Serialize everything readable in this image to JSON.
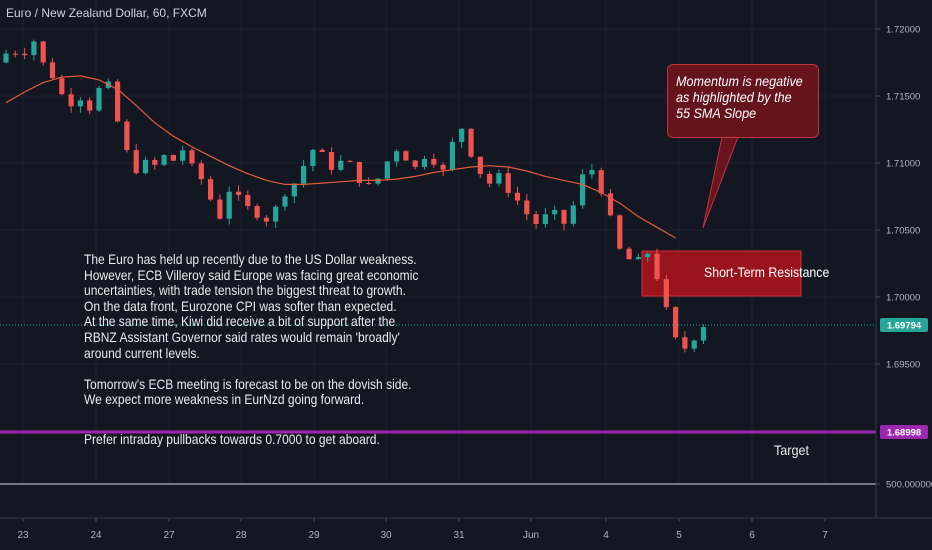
{
  "header": {
    "symbol_title": "Euro / New Zealand Dollar, 60, FXCM"
  },
  "colors": {
    "background": "#131722",
    "candle_up": "#26a69a",
    "candle_down": "#ef5350",
    "sma": "#e35b3a",
    "target_line": "#9c27b0",
    "current_price_line": "#26a69a",
    "resistance_box": "#b3141c",
    "axis_text": "#b2b5be"
  },
  "annotations": {
    "commentary": {
      "paragraph_1": [
        "The Euro has held up recently due to the US Dollar weakness.",
        "However, ECB Villeroy said Europe was facing great economic",
        "uncertainties, with trade tension the biggest threat to growth.",
        "On the data front, Eurozone CPI was softer than expected.",
        "At the same time, Kiwi did receive a bit of support after the",
        "RBNZ Assistant Governor said rates would remain 'broadly'",
        "around current levels."
      ],
      "paragraph_2": [
        "Tomorrow's ECB meeting is forecast to be on the dovish side.",
        "We expect more weakness in EurNzd going forward."
      ],
      "paragraph_3": "Prefer intraday pullbacks towards 0.7000 to get aboard."
    },
    "momentum_callout": [
      "Momentum is negative",
      "as highlighted by the",
      "55 SMA Slope"
    ],
    "resistance_label": "Short-Term Resistance",
    "target_label": "Target"
  },
  "chart_data": {
    "type": "candlestick",
    "instrument": "Euro / New Zealand Dollar",
    "timeframe": "60",
    "source": "FXCM",
    "x_ticks": [
      "23",
      "24",
      "27",
      "28",
      "29",
      "30",
      "31",
      "Jun",
      "4",
      "5",
      "6",
      "7"
    ],
    "y_ticks": [
      "1.72000",
      "1.71500",
      "1.71000",
      "1.70500",
      "1.70000",
      "1.69500",
      "500.000000"
    ],
    "ylim": [
      1.6895,
      1.721
    ],
    "current_price": 1.69794,
    "current_price_label": "1.69794",
    "target_price": 1.68998,
    "target_price_label": "1.68998",
    "resistance_zone": [
      1.7003,
      1.7051
    ],
    "sma_period": 55,
    "price_path": [
      [
        0,
        1.7175
      ],
      [
        1.5,
        1.7185
      ],
      [
        2.8,
        1.718
      ],
      [
        3.8,
        1.7195
      ],
      [
        4.8,
        1.7176
      ],
      [
        6.2,
        1.7163
      ],
      [
        7.2,
        1.7148
      ],
      [
        7.8,
        1.714
      ],
      [
        8.6,
        1.716
      ],
      [
        9.4,
        1.7138
      ],
      [
        10.2,
        1.7142
      ],
      [
        11,
        1.7155
      ],
      [
        11.8,
        1.7163
      ],
      [
        12.5,
        1.7145
      ],
      [
        13.2,
        1.7125
      ],
      [
        14,
        1.7108
      ],
      [
        15,
        1.7095
      ],
      [
        16,
        1.71
      ],
      [
        17,
        1.7098
      ],
      [
        18,
        1.7105
      ],
      [
        19,
        1.7102
      ],
      [
        20,
        1.711
      ],
      [
        21,
        1.7097
      ],
      [
        22,
        1.7088
      ],
      [
        23.2,
        1.707
      ],
      [
        24,
        1.706
      ],
      [
        25,
        1.708
      ],
      [
        26.2,
        1.7072
      ],
      [
        27.2,
        1.7065
      ],
      [
        28,
        1.7062
      ],
      [
        29,
        1.7058
      ],
      [
        30,
        1.7066
      ],
      [
        31,
        1.7078
      ],
      [
        32,
        1.7085
      ],
      [
        33,
        1.7098
      ],
      [
        34,
        1.711
      ],
      [
        35.2,
        1.7105
      ],
      [
        36.2,
        1.7095
      ],
      [
        37.2,
        1.7102
      ],
      [
        38.2,
        1.7098
      ],
      [
        39.2,
        1.7085
      ],
      [
        40.2,
        1.7082
      ],
      [
        41.2,
        1.709
      ],
      [
        42.2,
        1.7104
      ],
      [
        43.2,
        1.7112
      ],
      [
        44.2,
        1.7102
      ],
      [
        45.2,
        1.7095
      ],
      [
        46.2,
        1.7108
      ],
      [
        47.2,
        1.71
      ],
      [
        48.2,
        1.7092
      ],
      [
        49.2,
        1.712
      ],
      [
        50.2,
        1.7128
      ],
      [
        51.2,
        1.7102
      ],
      [
        52,
        1.7093
      ],
      [
        53,
        1.7085
      ],
      [
        54,
        1.709
      ],
      [
        55,
        1.708
      ],
      [
        56,
        1.7072
      ],
      [
        57,
        1.7062
      ],
      [
        58,
        1.7055
      ],
      [
        59,
        1.706
      ],
      [
        60,
        1.7062
      ],
      [
        61,
        1.7055
      ],
      [
        62,
        1.7068
      ],
      [
        63,
        1.709
      ],
      [
        64,
        1.7095
      ],
      [
        65,
        1.708
      ],
      [
        66,
        1.7058
      ],
      [
        67,
        1.7035
      ],
      [
        68,
        1.7028
      ],
      [
        69,
        1.7027
      ],
      [
        70,
        1.7033
      ],
      [
        71,
        1.7015
      ],
      [
        72,
        1.699
      ],
      [
        73,
        1.6968
      ],
      [
        74,
        1.6962
      ],
      [
        75,
        1.697
      ],
      [
        76,
        1.6979
      ]
    ],
    "sma_path": [
      [
        0,
        1.7145
      ],
      [
        2,
        1.7153
      ],
      [
        4,
        1.716
      ],
      [
        6,
        1.7164
      ],
      [
        8,
        1.7165
      ],
      [
        10,
        1.7162
      ],
      [
        12,
        1.7155
      ],
      [
        14,
        1.7143
      ],
      [
        16,
        1.713
      ],
      [
        18,
        1.712
      ],
      [
        20,
        1.7112
      ],
      [
        22,
        1.7105
      ],
      [
        24,
        1.7098
      ],
      [
        26,
        1.7092
      ],
      [
        28,
        1.7087
      ],
      [
        30,
        1.7084
      ],
      [
        32,
        1.7084
      ],
      [
        34,
        1.7085
      ],
      [
        36,
        1.7086
      ],
      [
        38,
        1.7087
      ],
      [
        40,
        1.7087
      ],
      [
        42,
        1.7088
      ],
      [
        44,
        1.709
      ],
      [
        46,
        1.7093
      ],
      [
        48,
        1.7095
      ],
      [
        50,
        1.7097
      ],
      [
        52,
        1.7098
      ],
      [
        54,
        1.7097
      ],
      [
        56,
        1.7094
      ],
      [
        58,
        1.709
      ],
      [
        60,
        1.7087
      ],
      [
        62,
        1.7084
      ],
      [
        64,
        1.7078
      ],
      [
        66,
        1.707
      ],
      [
        68,
        1.706
      ],
      [
        70,
        1.7052
      ],
      [
        72,
        1.7044
      ]
    ]
  }
}
